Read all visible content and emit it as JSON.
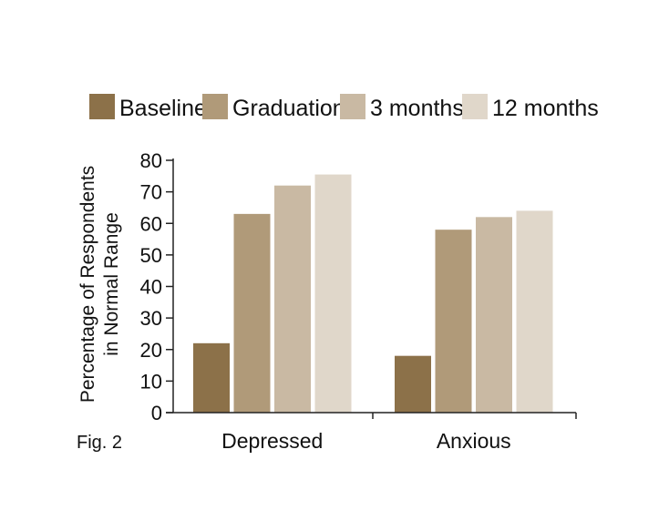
{
  "figure_label": "Fig. 2",
  "chart_data": {
    "type": "bar",
    "title": "",
    "xlabel": "",
    "ylabel_lines": [
      "Percentage of Respondents",
      "in Normal Range"
    ],
    "categories": [
      "Depressed",
      "Anxious"
    ],
    "ylim": [
      0,
      80
    ],
    "yticks": [
      0,
      10,
      20,
      30,
      40,
      50,
      60,
      70,
      80
    ],
    "grid": false,
    "legend_position": "top",
    "series": [
      {
        "name": "Baseline",
        "color": "#8c7149",
        "values": [
          22,
          18
        ]
      },
      {
        "name": "Graduation",
        "color": "#b09a79",
        "values": [
          63,
          58
        ]
      },
      {
        "name": "3 months",
        "color": "#c9b9a3",
        "values": [
          72,
          62
        ]
      },
      {
        "name": "12 months",
        "color": "#e0d7ca",
        "values": [
          75.5,
          64
        ]
      }
    ]
  }
}
